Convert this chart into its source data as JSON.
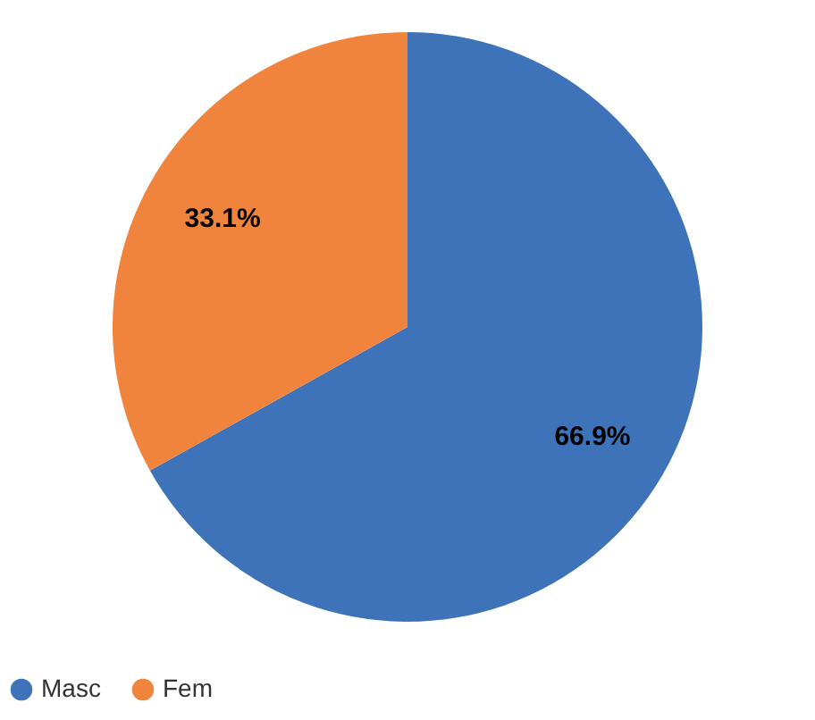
{
  "chart_data": {
    "type": "pie",
    "categories": [
      "Masc",
      "Fem"
    ],
    "values": [
      66.9,
      33.1
    ],
    "colors": [
      "#3e73b9",
      "#f0843c"
    ],
    "value_labels": [
      "66.9%",
      "33.1%"
    ],
    "legend": "bottom"
  }
}
